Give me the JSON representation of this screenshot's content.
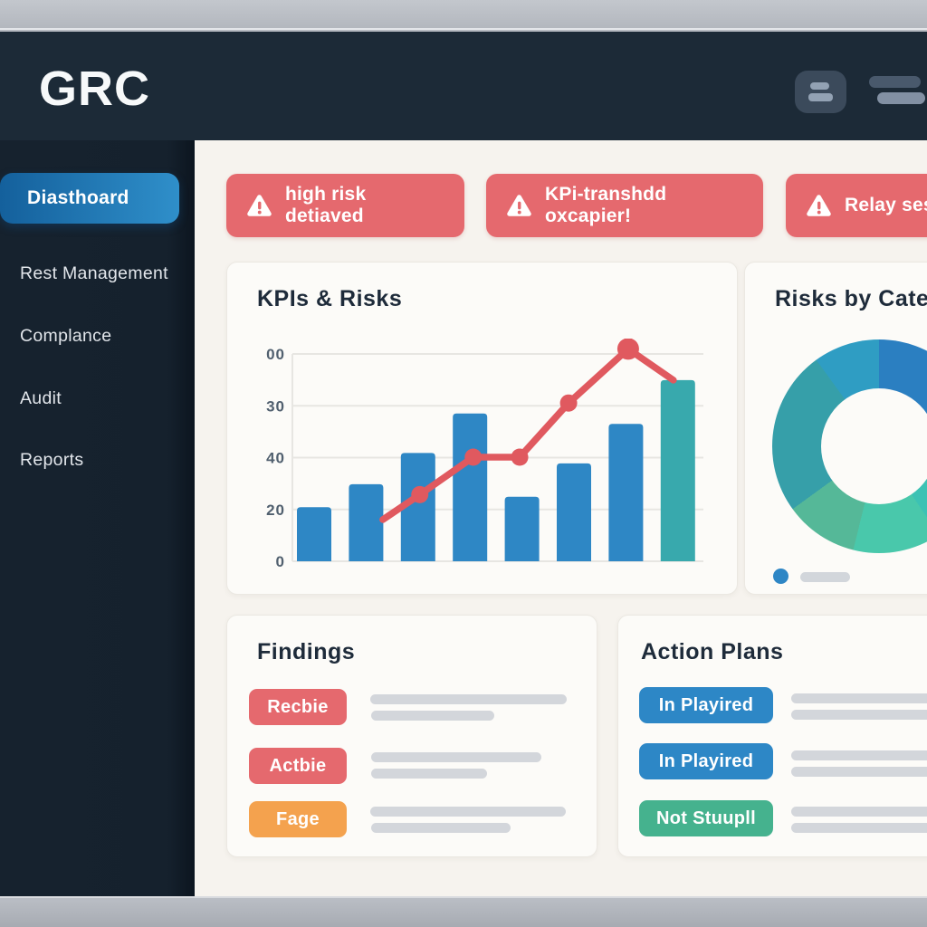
{
  "window": {
    "brand": "GRC"
  },
  "header": {
    "icons": [
      "list-button-icon",
      "menu-lines-icon"
    ]
  },
  "sidebar": {
    "items": [
      {
        "label": "Diasthoard",
        "active": true
      },
      {
        "label": "Rest Management",
        "active": false
      },
      {
        "label": "Complance",
        "active": false
      },
      {
        "label": "Audit",
        "active": false
      },
      {
        "label": "Reports",
        "active": false
      }
    ]
  },
  "alerts": [
    {
      "icon": "warning-triangle-icon",
      "text": "high risk detiaved"
    },
    {
      "icon": "warning-triangle-icon",
      "text": "KPi-transhdd oxcapier!"
    },
    {
      "icon": "warning-triangle-icon",
      "text": "Relay sesh"
    }
  ],
  "kpis_panel": {
    "title": "KPIs & Risks",
    "chart_data": {
      "type": "bar+line combo",
      "title": "KPIs & Risks",
      "y_tick_labels_top_to_bottom": [
        "00",
        "30",
        "40",
        "20",
        "0"
      ],
      "x_tick_labels": [],
      "grid": true,
      "legend": false,
      "note": "axis tick labels are decorative/garbled; values estimated on 0-100 relative scale",
      "bars": {
        "values": [
          26,
          37,
          52,
          71,
          31,
          47,
          66,
          87
        ],
        "default_color": "#2e87c5",
        "last_bar_color": "#38a9ad"
      },
      "line": {
        "color": "#e0595f",
        "points": [
          {
            "fx": 0.22,
            "v": 20,
            "marker": false
          },
          {
            "fx": 0.31,
            "v": 32,
            "marker": true
          },
          {
            "fx": 0.44,
            "v": 50,
            "marker": true
          },
          {
            "fx": 0.553,
            "v": 50,
            "marker": true
          },
          {
            "fx": 0.672,
            "v": 76,
            "marker": true
          },
          {
            "fx": 0.817,
            "v": 102,
            "marker": true,
            "peak": true
          },
          {
            "fx": 0.927,
            "v": 87,
            "marker": false
          }
        ]
      }
    }
  },
  "risks_panel": {
    "title": "Risks by Cates",
    "chart_data": {
      "type": "donut",
      "note": "no segment labels visible; panel clipped by right screen edge",
      "segments": [
        {
          "color": "#2b7fc1",
          "from_deg": 0,
          "to_deg": 100
        },
        {
          "color": "#3cc2b4",
          "from_deg": 100,
          "to_deg": 146
        },
        {
          "color": "#49c8ab",
          "from_deg": 146,
          "to_deg": 194
        },
        {
          "color": "#55b898",
          "from_deg": 194,
          "to_deg": 234
        },
        {
          "color": "#369fa9",
          "from_deg": 234,
          "to_deg": 324
        },
        {
          "color": "#2f9dc3",
          "from_deg": 324,
          "to_deg": 360
        }
      ],
      "legend": {
        "dot_color": "#2e86c5",
        "label": ""
      }
    }
  },
  "findings_panel": {
    "title": "Findings",
    "items": [
      {
        "badge": "Recbie",
        "badge_color": "#e5696e"
      },
      {
        "badge": "Actbie",
        "badge_color": "#e5696e"
      },
      {
        "badge": "Fage",
        "badge_color": "#f4a24e"
      }
    ]
  },
  "actions_panel": {
    "title": "Action Plans",
    "items": [
      {
        "badge": "In Playired",
        "badge_color": "#2d87c6"
      },
      {
        "badge": "In Playired",
        "badge_color": "#2d87c6"
      },
      {
        "badge": "Not Stuupll",
        "badge_color": "#45b28e"
      }
    ]
  },
  "colors": {
    "header_bg": "#1c2a37",
    "sidebar_bg": "#15212d",
    "active_nav_gradient": [
      "#14609c",
      "#2f8fca"
    ],
    "main_bg": "#f6f3ee",
    "panel_bg": "#fcfbf8",
    "alert_bg": "#e5696e",
    "bar_blue": "#2e87c5",
    "bar_teal": "#38a9ad",
    "line_red": "#e0595f",
    "placeholder_gray": "#d3d6db"
  }
}
